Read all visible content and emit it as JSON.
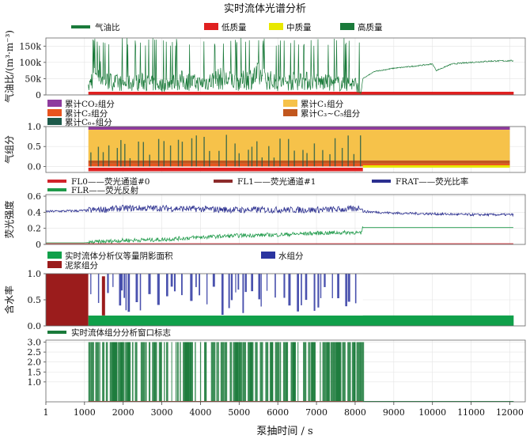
{
  "title": "实时流体光谱分析",
  "xlabel": "泵抽时间 / s",
  "x_ticks": [
    1,
    1000,
    2000,
    3000,
    4000,
    5000,
    6000,
    7000,
    8000,
    9000,
    10000,
    11000,
    12000
  ],
  "colors": {
    "green_dark": "#1a7a3a",
    "red": "#e02020",
    "yellow": "#e8e800",
    "purple": "#8e3b9e",
    "orange": "#f2a030",
    "c1_fill": "#f6c24a",
    "c2": "#e8541e",
    "c35": "#c2571e",
    "c6": "#1d5a4a",
    "fl0": "#d2232a",
    "fl1": "#8c2b2b",
    "frat": "#2b2f8f",
    "flr": "#1f9a4a",
    "water": "#2a34a0",
    "oil_green": "#10a04a",
    "mud": "#9b1c1c"
  },
  "chart_data": [
    {
      "id": "gor",
      "type": "line",
      "ylabel": "气油比/(m³·m⁻³)",
      "ylim": [
        0,
        175000
      ],
      "y_ticks": [
        0,
        50000,
        100000,
        150000
      ],
      "y_tick_labels": [
        "0",
        "50k",
        "100k",
        "150k"
      ],
      "legend": [
        {
          "name": "气油比",
          "kind": "line",
          "color": "#1a7a3a"
        },
        {
          "name": "低质量",
          "kind": "box",
          "color": "#e02020"
        },
        {
          "name": "中质量",
          "kind": "box",
          "color": "#e8e800"
        },
        {
          "name": "高质量",
          "kind": "box",
          "color": "#1a7a3a"
        }
      ],
      "series": [
        {
          "x": [
            1,
            400,
            800,
            1100,
            1300,
            1500,
            1700,
            2000,
            2500,
            3000,
            3500,
            4000,
            4500,
            5000,
            5500,
            6000,
            6500,
            7000,
            7500,
            8000,
            8150,
            8200,
            8500,
            9000,
            9500,
            10000,
            10100,
            10500,
            11000,
            11500,
            12000
          ],
          "y": [
            0,
            0,
            0,
            20000,
            90000,
            45000,
            40000,
            35000,
            40000,
            30000,
            45000,
            35000,
            50000,
            40000,
            60000,
            35000,
            45000,
            40000,
            35000,
            35000,
            5000,
            50000,
            72000,
            82000,
            88000,
            95000,
            75000,
            95000,
            100000,
            104000,
            105000
          ]
        }
      ]
    },
    {
      "id": "gas",
      "type": "area",
      "ylabel": "气组分",
      "ylim": [
        -0.15,
        1.0
      ],
      "y_ticks": [
        0,
        0.5,
        1.0
      ],
      "y_tick_labels": [
        "0.0",
        "0.5",
        "1.0"
      ],
      "legend": [
        {
          "name": "累计CO₂组分",
          "kind": "box",
          "color": "#8e3b9e"
        },
        {
          "name": "累计C₁组分",
          "kind": "box",
          "color": "#f6c24a"
        },
        {
          "name": "累计C₂组分",
          "kind": "box",
          "color": "#e8541e"
        },
        {
          "name": "累计C₃~C₅组分",
          "kind": "box",
          "color": "#c2571e"
        },
        {
          "name": "累计C₆₊组分",
          "kind": "box",
          "color": "#1d5a4a"
        }
      ],
      "x": [
        1100,
        12000
      ],
      "bands": [
        {
          "name": "CO2",
          "from": 0.92,
          "to": 1.0
        },
        {
          "name": "C1",
          "from": 0.15,
          "to": 0.92
        },
        {
          "name": "C35",
          "from": 0.07,
          "to": 0.15
        },
        {
          "name": "C2",
          "from": 0.0,
          "to": 0.07
        }
      ]
    },
    {
      "id": "fluo",
      "type": "line",
      "ylabel": "荧光强度",
      "ylim": [
        0,
        0.62
      ],
      "y_ticks": [
        0,
        0.2,
        0.4,
        0.6
      ],
      "y_tick_labels": [
        "0",
        "0.2",
        "0.4",
        "0.6"
      ],
      "legend": [
        {
          "name": "FL0——荧光通道#0",
          "kind": "line",
          "color": "#d2232a"
        },
        {
          "name": "FL1——荧光通道#1",
          "kind": "line",
          "color": "#8c2b2b"
        },
        {
          "name": "FRAT——荧光比率",
          "kind": "line",
          "color": "#2b2f8f"
        },
        {
          "name": "FLR——荧光反射",
          "kind": "line",
          "color": "#1f9a4a"
        }
      ],
      "series": [
        {
          "name": "FRAT",
          "x": [
            1,
            1000,
            2000,
            3000,
            4000,
            5000,
            6000,
            7000,
            8000,
            8150,
            8200,
            9000,
            10000,
            11000,
            12000
          ],
          "y": [
            0.41,
            0.42,
            0.45,
            0.45,
            0.44,
            0.43,
            0.43,
            0.43,
            0.44,
            0.47,
            0.41,
            0.39,
            0.38,
            0.37,
            0.37
          ]
        },
        {
          "name": "FLR",
          "x": [
            1,
            1000,
            2000,
            3000,
            4000,
            5000,
            6000,
            7000,
            8000,
            8150,
            8200,
            9000,
            10000,
            11000,
            12000
          ],
          "y": [
            0.02,
            0.02,
            0.05,
            0.06,
            0.09,
            0.11,
            0.12,
            0.14,
            0.15,
            0.13,
            0.21,
            0.21,
            0.21,
            0.21,
            0.21
          ]
        },
        {
          "name": "FL0",
          "x": [
            1,
            12000
          ],
          "y": [
            0.01,
            0.01
          ]
        },
        {
          "name": "FL1",
          "x": [
            1,
            12000
          ],
          "y": [
            0.0,
            0.0
          ]
        }
      ]
    },
    {
      "id": "water",
      "type": "area",
      "ylabel": "含水率",
      "ylim": [
        0,
        1.0
      ],
      "y_ticks": [
        0,
        0.5,
        1.0
      ],
      "y_tick_labels": [
        "0.0",
        "0.5",
        "1.0"
      ],
      "legend": [
        {
          "name": "实时流体分析仪等量阴影面积",
          "kind": "box",
          "color": "#10a04a"
        },
        {
          "name": "水组分",
          "kind": "box",
          "color": "#2a34a0"
        },
        {
          "name": "泥浆组分",
          "kind": "box",
          "color": "#9b1c1c"
        }
      ],
      "mud_until": 1100,
      "oil_level": 0.2,
      "water_level": 1.0
    },
    {
      "id": "window",
      "type": "bar",
      "ylabel": "",
      "ylim": [
        0,
        3.1
      ],
      "y_ticks": [
        1.0,
        1.5,
        2.0,
        2.5,
        3.0
      ],
      "y_tick_labels": [
        "1.0",
        "1.5",
        "2.0",
        "2.5",
        "3.0"
      ],
      "legend": [
        {
          "name": "实时流体组分分析窗口标志",
          "kind": "line",
          "color": "#1a7a3a"
        }
      ],
      "flag_range": [
        1100,
        8200
      ],
      "flag_value": 3.0
    }
  ]
}
